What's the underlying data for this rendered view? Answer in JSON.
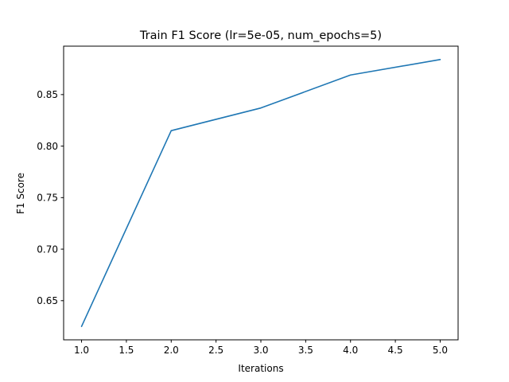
{
  "chart_data": {
    "type": "line",
    "title": "Train F1 Score (lr=5e-05, num_epochs=5)",
    "xlabel": "Iterations",
    "ylabel": "F1 Score",
    "x": [
      1.0,
      2.0,
      3.0,
      4.0,
      5.0
    ],
    "series": [
      {
        "values": [
          0.625,
          0.815,
          0.837,
          0.869,
          0.884
        ]
      }
    ],
    "xlim": [
      0.8,
      5.2
    ],
    "ylim": [
      0.612,
      0.897
    ],
    "xticks": [
      1.0,
      1.5,
      2.0,
      2.5,
      3.0,
      3.5,
      4.0,
      4.5,
      5.0
    ],
    "xtick_labels": [
      "1.0",
      "1.5",
      "2.0",
      "2.5",
      "3.0",
      "3.5",
      "4.0",
      "4.5",
      "5.0"
    ],
    "yticks": [
      0.65,
      0.7,
      0.75,
      0.8,
      0.85
    ],
    "ytick_labels": [
      "0.65",
      "0.70",
      "0.75",
      "0.80",
      "0.85"
    ],
    "grid": false,
    "legend": "none",
    "line_color": "#1f77b4"
  }
}
